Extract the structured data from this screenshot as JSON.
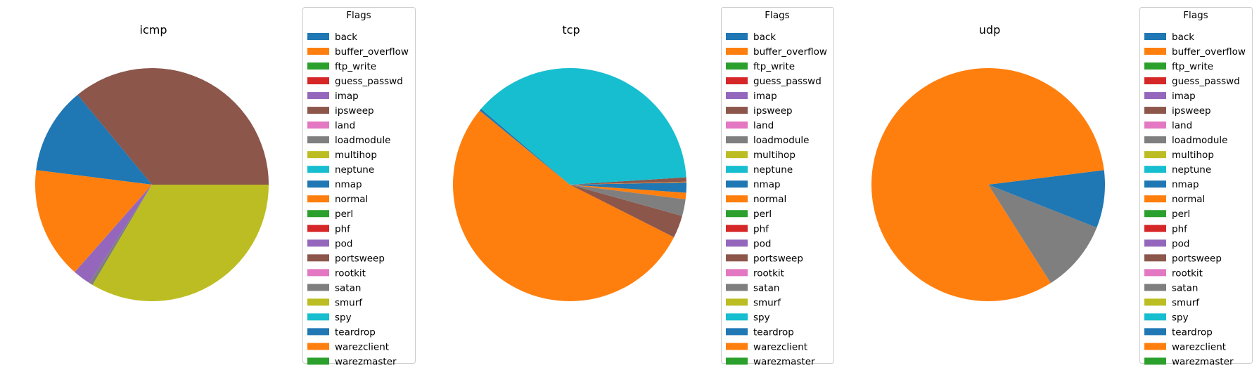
{
  "legend_title": "Flags",
  "labels": [
    "back",
    "buffer_overflow",
    "ftp_write",
    "guess_passwd",
    "imap",
    "ipsweep",
    "land",
    "loadmodule",
    "multihop",
    "neptune",
    "nmap",
    "normal",
    "perl",
    "phf",
    "pod",
    "portsweep",
    "rootkit",
    "satan",
    "smurf",
    "spy",
    "teardrop",
    "warezclient",
    "warezmaster"
  ],
  "palette": [
    "#1f77b4",
    "#ff7f0e",
    "#2ca02c",
    "#d62728",
    "#9467bd",
    "#8c564b",
    "#e377c2",
    "#7f7f7f",
    "#bcbd22",
    "#17becf"
  ],
  "chart_data": [
    {
      "type": "pie",
      "title": "icmp",
      "legend_placement": "right",
      "start_angle": 0,
      "slices": [
        {
          "label": "ipsweep",
          "value": 36.0
        },
        {
          "label": "nmap",
          "value": 12.0
        },
        {
          "label": "normal",
          "value": 15.5
        },
        {
          "label": "pod",
          "value": 2.5
        },
        {
          "label": "satan",
          "value": 0.5
        },
        {
          "label": "smurf",
          "value": 33.5
        }
      ]
    },
    {
      "type": "pie",
      "title": "tcp",
      "legend_placement": "right",
      "start_angle": 0,
      "slices": [
        {
          "label": "back",
          "value": 0.3
        },
        {
          "label": "buffer_overflow",
          "value": 0.1
        },
        {
          "label": "ipsweep",
          "value": 0.6
        },
        {
          "label": "neptune",
          "value": 37.5
        },
        {
          "label": "nmap",
          "value": 0.3
        },
        {
          "label": "normal",
          "value": 53.2
        },
        {
          "label": "portsweep",
          "value": 3.1
        },
        {
          "label": "satan",
          "value": 2.3
        },
        {
          "label": "warezclient",
          "value": 0.9
        },
        {
          "label": "teardrop",
          "value": 1.1
        }
      ]
    },
    {
      "type": "pie",
      "title": "udp",
      "legend_placement": "right",
      "start_angle": 0,
      "slices": [
        {
          "label": "nmap",
          "value": 2.0
        },
        {
          "label": "normal",
          "value": 82.0
        },
        {
          "label": "satan",
          "value": 10.0
        },
        {
          "label": "teardrop",
          "value": 6.0
        }
      ]
    }
  ]
}
